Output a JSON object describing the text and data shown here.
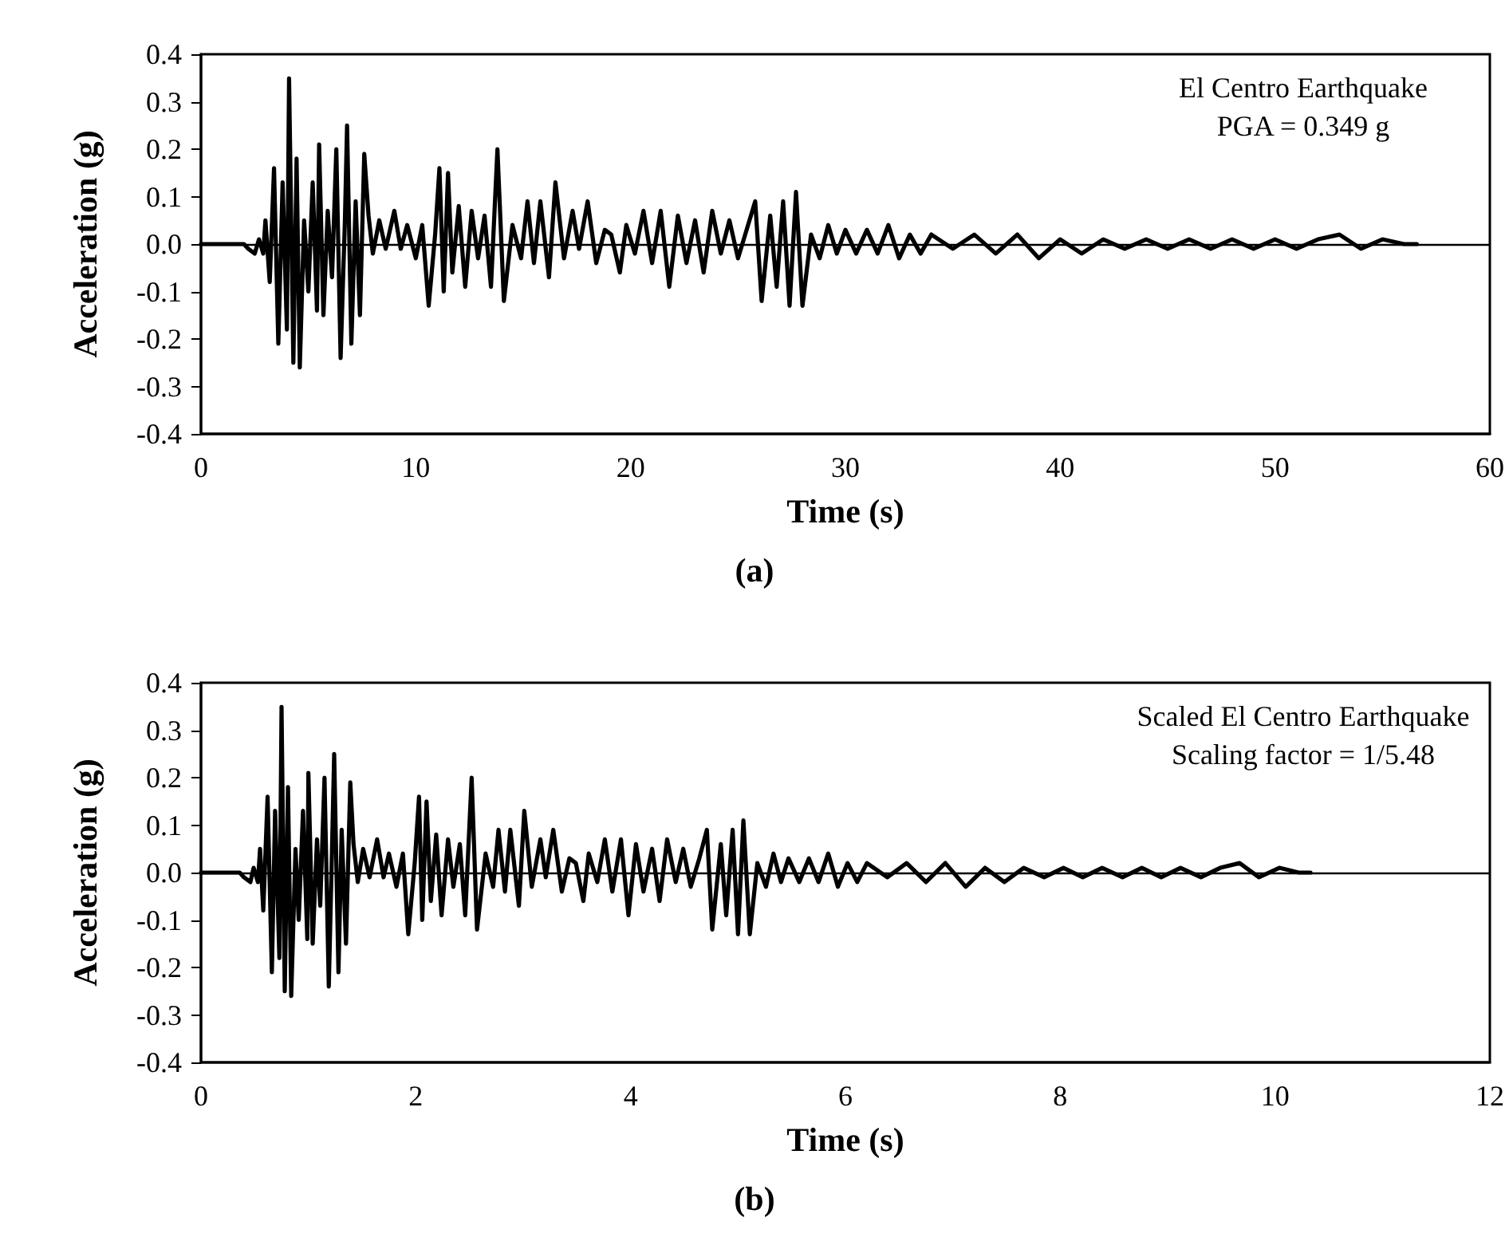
{
  "chart_data": [
    {
      "type": "line",
      "title": "(a)",
      "xlabel": "Time (s)",
      "ylabel": "Acceleration (g)",
      "annotations": [
        "El Centro Earthquake",
        "PGA = 0.349 g"
      ],
      "x": [
        0,
        2,
        2.2,
        2.5,
        2.7,
        2.9,
        3.0,
        3.2,
        3.4,
        3.6,
        3.8,
        4.0,
        4.1,
        4.3,
        4.45,
        4.6,
        4.8,
        5.0,
        5.2,
        5.4,
        5.5,
        5.7,
        5.9,
        6.1,
        6.3,
        6.5,
        6.7,
        6.8,
        7.0,
        7.2,
        7.4,
        7.6,
        7.8,
        8.0,
        8.3,
        8.6,
        9.0,
        9.3,
        9.6,
        10.0,
        10.3,
        10.6,
        10.9,
        11.1,
        11.3,
        11.5,
        11.7,
        12.0,
        12.3,
        12.6,
        12.9,
        13.2,
        13.5,
        13.8,
        14.1,
        14.5,
        14.9,
        15.2,
        15.5,
        15.8,
        16.2,
        16.5,
        16.9,
        17.3,
        17.6,
        18.0,
        18.4,
        18.8,
        19.1,
        19.5,
        19.8,
        20.2,
        20.6,
        21.0,
        21.4,
        21.8,
        22.2,
        22.6,
        23.0,
        23.4,
        23.8,
        24.2,
        24.6,
        25.0,
        25.4,
        25.8,
        26.1,
        26.5,
        26.8,
        27.1,
        27.4,
        27.7,
        28.0,
        28.4,
        28.8,
        29.2,
        29.6,
        30.0,
        30.5,
        31,
        31.5,
        32,
        32.5,
        33,
        33.5,
        34,
        35,
        36,
        37,
        38,
        39,
        40,
        41,
        42,
        43,
        44,
        45,
        46,
        47,
        48,
        49,
        50,
        51,
        52,
        53,
        54,
        55,
        56,
        56.6
      ],
      "series": [
        {
          "color": "#000000",
          "values": [
            0,
            0,
            -0.01,
            -0.02,
            0.01,
            -0.02,
            0.05,
            -0.08,
            0.16,
            -0.21,
            0.13,
            -0.18,
            0.349,
            -0.25,
            0.18,
            -0.26,
            0.05,
            -0.1,
            0.13,
            -0.14,
            0.21,
            -0.15,
            0.07,
            -0.07,
            0.2,
            -0.24,
            0.05,
            0.25,
            -0.21,
            0.09,
            -0.15,
            0.19,
            0.06,
            -0.02,
            0.05,
            -0.01,
            0.07,
            -0.01,
            0.04,
            -0.03,
            0.04,
            -0.13,
            0.02,
            0.16,
            -0.1,
            0.15,
            -0.06,
            0.08,
            -0.09,
            0.07,
            -0.03,
            0.06,
            -0.09,
            0.2,
            -0.12,
            0.04,
            -0.03,
            0.09,
            -0.04,
            0.09,
            -0.07,
            0.13,
            -0.03,
            0.07,
            -0.01,
            0.09,
            -0.04,
            0.03,
            0.02,
            -0.06,
            0.04,
            -0.02,
            0.07,
            -0.04,
            0.07,
            -0.09,
            0.06,
            -0.04,
            0.05,
            -0.06,
            0.07,
            -0.02,
            0.05,
            -0.03,
            0.03,
            0.09,
            -0.12,
            0.06,
            -0.09,
            0.09,
            -0.13,
            0.11,
            -0.13,
            0.02,
            -0.03,
            0.04,
            -0.02,
            0.03,
            -0.02,
            0.03,
            -0.02,
            0.04,
            -0.03,
            0.02,
            -0.02,
            0.02,
            -0.01,
            0.02,
            -0.02,
            0.02,
            -0.03,
            0.01,
            -0.02,
            0.01,
            -0.01,
            0.01,
            -0.01,
            0.01,
            -0.01,
            0.01,
            -0.01,
            0.01,
            -0.01,
            0.01,
            0.02,
            -0.01,
            0.01,
            0,
            0
          ]
        }
      ],
      "xlim": [
        0,
        60
      ],
      "xticks": [
        0,
        10,
        20,
        30,
        40,
        50,
        60
      ],
      "ylim": [
        -0.4,
        0.4
      ],
      "yticks": [
        -0.4,
        -0.3,
        -0.2,
        -0.1,
        {
          "value": 0,
          "label": "0.0"
        },
        0.1,
        0.2,
        0.3,
        0.4
      ],
      "ref_lines": [
        {
          "axis": "y",
          "value": 0,
          "color": "#000000"
        }
      ],
      "grid": false,
      "marker": "none",
      "line_style": "solid"
    },
    {
      "type": "line",
      "title": "(b)",
      "xlabel": "Time (s)",
      "ylabel": "Acceleration (g)",
      "annotations": [
        "Scaled El Centro Earthquake",
        "Scaling factor = 1/5.48"
      ],
      "x": [
        0,
        0.36,
        0.4,
        0.46,
        0.49,
        0.53,
        0.55,
        0.58,
        0.62,
        0.66,
        0.69,
        0.73,
        0.75,
        0.78,
        0.81,
        0.84,
        0.88,
        0.91,
        0.95,
        0.99,
        1.0,
        1.04,
        1.08,
        1.11,
        1.15,
        1.19,
        1.22,
        1.24,
        1.28,
        1.31,
        1.35,
        1.39,
        1.42,
        1.46,
        1.51,
        1.57,
        1.64,
        1.7,
        1.75,
        1.82,
        1.88,
        1.93,
        1.99,
        2.03,
        2.06,
        2.1,
        2.14,
        2.19,
        2.24,
        2.3,
        2.35,
        2.41,
        2.46,
        2.52,
        2.57,
        2.65,
        2.72,
        2.77,
        2.83,
        2.88,
        2.96,
        3.01,
        3.08,
        3.16,
        3.21,
        3.28,
        3.36,
        3.43,
        3.49,
        3.56,
        3.61,
        3.69,
        3.76,
        3.83,
        3.91,
        3.98,
        4.05,
        4.12,
        4.2,
        4.27,
        4.34,
        4.42,
        4.49,
        4.56,
        4.64,
        4.71,
        4.76,
        4.84,
        4.89,
        4.95,
        5.0,
        5.05,
        5.11,
        5.18,
        5.26,
        5.33,
        5.4,
        5.47,
        5.57,
        5.66,
        5.75,
        5.84,
        5.93,
        6.02,
        6.11,
        6.2,
        6.39,
        6.57,
        6.75,
        6.93,
        7.12,
        7.3,
        7.48,
        7.66,
        7.85,
        8.03,
        8.21,
        8.39,
        8.58,
        8.76,
        8.94,
        9.12,
        9.31,
        9.49,
        9.67,
        9.85,
        10.04,
        10.22,
        10.33
      ],
      "series": [
        {
          "color": "#000000",
          "values": [
            0,
            0,
            -0.01,
            -0.02,
            0.01,
            -0.02,
            0.05,
            -0.08,
            0.16,
            -0.21,
            0.13,
            -0.18,
            0.349,
            -0.25,
            0.18,
            -0.26,
            0.05,
            -0.1,
            0.13,
            -0.14,
            0.21,
            -0.15,
            0.07,
            -0.07,
            0.2,
            -0.24,
            0.05,
            0.25,
            -0.21,
            0.09,
            -0.15,
            0.19,
            0.06,
            -0.02,
            0.05,
            -0.01,
            0.07,
            -0.01,
            0.04,
            -0.03,
            0.04,
            -0.13,
            0.02,
            0.16,
            -0.1,
            0.15,
            -0.06,
            0.08,
            -0.09,
            0.07,
            -0.03,
            0.06,
            -0.09,
            0.2,
            -0.12,
            0.04,
            -0.03,
            0.09,
            -0.04,
            0.09,
            -0.07,
            0.13,
            -0.03,
            0.07,
            -0.01,
            0.09,
            -0.04,
            0.03,
            0.02,
            -0.06,
            0.04,
            -0.02,
            0.07,
            -0.04,
            0.07,
            -0.09,
            0.06,
            -0.04,
            0.05,
            -0.06,
            0.07,
            -0.02,
            0.05,
            -0.03,
            0.03,
            0.09,
            -0.12,
            0.06,
            -0.09,
            0.09,
            -0.13,
            0.11,
            -0.13,
            0.02,
            -0.03,
            0.04,
            -0.02,
            0.03,
            -0.02,
            0.03,
            -0.02,
            0.04,
            -0.03,
            0.02,
            -0.02,
            0.02,
            -0.01,
            0.02,
            -0.02,
            0.02,
            -0.03,
            0.01,
            -0.02,
            0.01,
            -0.01,
            0.01,
            -0.01,
            0.01,
            -0.01,
            0.01,
            -0.01,
            0.01,
            -0.01,
            0.01,
            0.02,
            -0.01,
            0.01,
            0,
            0
          ]
        }
      ],
      "xlim": [
        0,
        12
      ],
      "xticks": [
        0,
        2,
        4,
        6,
        8,
        10,
        12
      ],
      "ylim": [
        -0.4,
        0.4
      ],
      "yticks": [
        -0.4,
        -0.3,
        -0.2,
        -0.1,
        {
          "value": 0,
          "label": "0.0"
        },
        0.1,
        0.2,
        0.3,
        0.4
      ],
      "ref_lines": [
        {
          "axis": "y",
          "value": 0,
          "color": "#000000"
        }
      ],
      "grid": false,
      "marker": "none",
      "line_style": "solid"
    }
  ]
}
